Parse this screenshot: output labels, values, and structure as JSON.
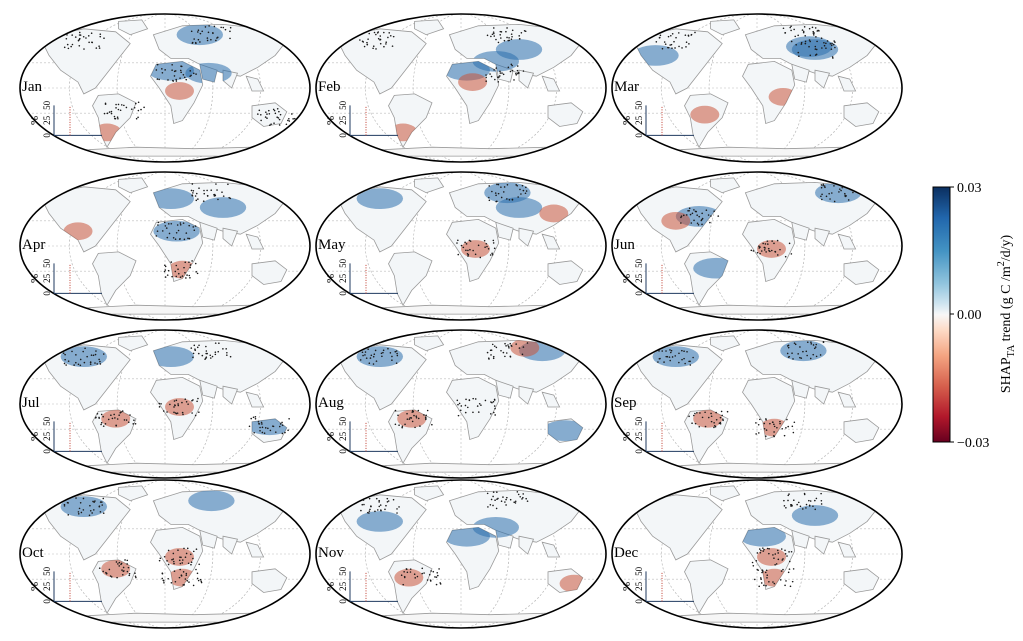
{
  "figure": {
    "panels": [
      {
        "month": "Jan",
        "stipple_regions": [
          "north-america-north",
          "eurasia-north",
          "sahara",
          "south-america-east",
          "australia-east"
        ],
        "positive_regions": [
          "north-africa",
          "arabia",
          "siberia-west"
        ],
        "negative_regions": [
          "central-africa",
          "south-america-south"
        ]
      },
      {
        "month": "Feb",
        "stipple_regions": [
          "north-america-north",
          "eurasia-north",
          "arabia"
        ],
        "positive_regions": [
          "north-africa",
          "middle-east",
          "central-asia"
        ],
        "negative_regions": [
          "sahara-south",
          "south-america-south"
        ]
      },
      {
        "month": "Mar",
        "stipple_regions": [
          "north-america-north",
          "eurasia-north",
          "central-asia"
        ],
        "positive_regions": [
          "north-america-west",
          "eurasia-central",
          "central-asia"
        ],
        "negative_regions": [
          "east-africa",
          "south-america-central"
        ]
      },
      {
        "month": "Apr",
        "stipple_regions": [
          "eurasia-north",
          "sahara",
          "south-africa"
        ],
        "positive_regions": [
          "europe",
          "central-asia",
          "sahara"
        ],
        "negative_regions": [
          "north-america-south",
          "south-africa"
        ]
      },
      {
        "month": "May",
        "stipple_regions": [
          "eurasia-north",
          "central-africa"
        ],
        "positive_regions": [
          "north-america-north",
          "eurasia-north",
          "central-asia"
        ],
        "negative_regions": [
          "central-africa",
          "east-asia"
        ]
      },
      {
        "month": "Jun",
        "stipple_regions": [
          "north-america-east",
          "central-africa",
          "siberia"
        ],
        "positive_regions": [
          "north-america-east",
          "siberia",
          "south-america-east"
        ],
        "negative_regions": [
          "central-africa",
          "north-america-central"
        ]
      },
      {
        "month": "Jul",
        "stipple_regions": [
          "north-america-north",
          "eurasia-north",
          "amazon",
          "central-africa",
          "australia-north"
        ],
        "positive_regions": [
          "north-america-north",
          "europe",
          "australia-north"
        ],
        "negative_regions": [
          "amazon",
          "central-africa"
        ]
      },
      {
        "month": "Aug",
        "stipple_regions": [
          "north-america-north",
          "eurasia-north",
          "amazon",
          "central-africa"
        ],
        "positive_regions": [
          "north-america-north",
          "siberia",
          "australia"
        ],
        "negative_regions": [
          "amazon",
          "siberia-central"
        ]
      },
      {
        "month": "Sep",
        "stipple_regions": [
          "north-america-north",
          "eurasia-north",
          "amazon",
          "south-africa"
        ],
        "positive_regions": [
          "north-america-north",
          "eurasia-north"
        ],
        "negative_regions": [
          "amazon",
          "south-africa"
        ]
      },
      {
        "month": "Oct",
        "stipple_regions": [
          "north-america-north",
          "amazon",
          "central-africa",
          "south-africa"
        ],
        "positive_regions": [
          "north-america-north",
          "eurasia-north"
        ],
        "negative_regions": [
          "amazon",
          "central-africa",
          "south-africa"
        ]
      },
      {
        "month": "Nov",
        "stipple_regions": [
          "north-america-north",
          "eurasia-north",
          "south-america-east"
        ],
        "positive_regions": [
          "north-america",
          "north-africa",
          "middle-east"
        ],
        "negative_regions": [
          "south-america",
          "australia-east"
        ]
      },
      {
        "month": "Dec",
        "stipple_regions": [
          "eurasia-north",
          "central-africa",
          "south-africa"
        ],
        "positive_regions": [
          "north-africa",
          "central-asia"
        ],
        "negative_regions": [
          "central-africa",
          "south-africa"
        ]
      }
    ],
    "inset": {
      "ylabel": "%",
      "ticks": [
        "0",
        "25",
        "50"
      ]
    },
    "colorbar": {
      "ticks": [
        "0.03",
        "0.00",
        "−0.03"
      ],
      "label_prefix": "SHAP",
      "label_subscript": "TA",
      "label_suffix": " trend (g C /m",
      "label_superscript": "2",
      "label_end": "/d/y)",
      "colors": [
        "#0b2f60",
        "#2166ac",
        "#4393c3",
        "#92c5de",
        "#d1e5f0",
        "#f7f7f7",
        "#fddbc7",
        "#f4a582",
        "#d6604d",
        "#b2182b",
        "#67001f"
      ]
    },
    "colors": {
      "land_neutral": "#f3f6f8",
      "land_outline": "#9a9a9a",
      "grid": "#bdbdbd",
      "frame": "#000000",
      "positive": "#2c6fad",
      "negative": "#c8553d",
      "inset_bar": "#c0392b",
      "inset_axis": "#1f3a5f"
    }
  }
}
